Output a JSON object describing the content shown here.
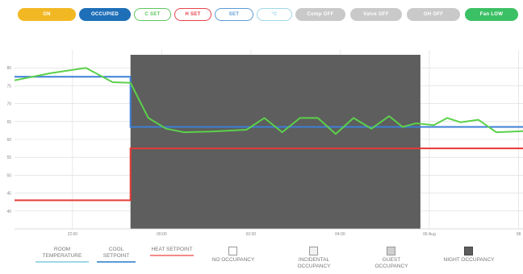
{
  "pills": [
    {
      "label": "ON",
      "style": "filled",
      "color": "#F2B824"
    },
    {
      "label": "OCCUPIED",
      "style": "filled",
      "color": "#1E6FB8"
    },
    {
      "label": "C SET",
      "style": "outline",
      "color": "#5CC65C"
    },
    {
      "label": "H SET",
      "style": "outline",
      "color": "#E8424C"
    },
    {
      "label": "SET",
      "style": "outline",
      "color": "#5B9BD5"
    },
    {
      "label": "°C",
      "style": "outline",
      "color": "#9FD6E8"
    },
    {
      "label": "Comp OFF",
      "style": "filled",
      "color": "#C9C9C9"
    },
    {
      "label": "Valve OFF",
      "style": "filled",
      "color": "#C9C9C9"
    },
    {
      "label": "OH OFF",
      "style": "filled",
      "color": "#C9C9C9"
    },
    {
      "label": "Fan LOW",
      "style": "filled",
      "color": "#3CC065"
    }
  ],
  "chart": {
    "y_ticks": [
      "80",
      "75",
      "70",
      "65",
      "60",
      "55",
      "50",
      "45",
      "40"
    ],
    "x_ticks": [
      "22:00",
      "00:00",
      "02:00",
      "04:00",
      "06 Aug",
      "08"
    ],
    "colors": {
      "room": "#5BD14A",
      "cool": "#3C7FD6",
      "heat": "#E53935",
      "night": "#5E5E5E",
      "grid": "#DADADA"
    },
    "room": [
      [
        0,
        76.5
      ],
      [
        0.08,
        78.5
      ],
      [
        0.16,
        80
      ],
      [
        0.22,
        76
      ],
      [
        0.26,
        75.8
      ],
      [
        0.3,
        66
      ],
      [
        0.34,
        63
      ],
      [
        0.38,
        62
      ],
      [
        0.44,
        62.2
      ],
      [
        0.52,
        62.7
      ],
      [
        0.56,
        66
      ],
      [
        0.6,
        62
      ],
      [
        0.64,
        66
      ],
      [
        0.68,
        66
      ],
      [
        0.72,
        61.5
      ],
      [
        0.76,
        66
      ],
      [
        0.8,
        63
      ],
      [
        0.84,
        66.5
      ],
      [
        0.87,
        63.5
      ],
      [
        0.9,
        64.5
      ],
      [
        0.94,
        64
      ],
      [
        0.97,
        66
      ],
      [
        1.0,
        64.8
      ],
      [
        1.04,
        65.5
      ],
      [
        1.08,
        62
      ],
      [
        1.14,
        62.3
      ]
    ],
    "cool": [
      [
        0,
        77.5
      ],
      [
        0.26,
        77.5
      ],
      [
        0.26,
        63.5
      ],
      [
        1.14,
        63.5
      ]
    ],
    "heat": [
      [
        0,
        43
      ],
      [
        0.26,
        43
      ],
      [
        0.26,
        57.5
      ],
      [
        1.14,
        57.5
      ]
    ],
    "night": [
      0.26,
      0.91
    ]
  },
  "legend": {
    "room": "ROOM TEMPERATURE",
    "cool": "COOL SETPOINT",
    "heat": "HEAT SETPOINT",
    "no_occ": "NO OCCUPANCY",
    "incidental": "INCIDENTAL OCCUPANCY",
    "guest": "GUEST OCCUPANCY",
    "night": "NIGHT OCCUPANCY"
  }
}
